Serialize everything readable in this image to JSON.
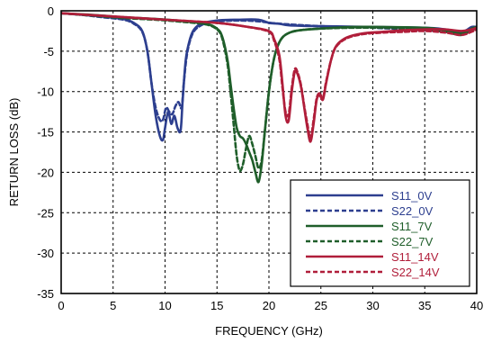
{
  "chart_data": {
    "type": "line",
    "title": "",
    "xlabel": "FREQUENCY (GHz)",
    "ylabel": "RETURN LOSS (dB)",
    "xlim": [
      0,
      40
    ],
    "ylim": [
      -35,
      0
    ],
    "xticks": [
      0,
      5,
      10,
      15,
      20,
      25,
      30,
      35,
      40
    ],
    "yticks": [
      0,
      -5,
      -10,
      -15,
      -20,
      -25,
      -30,
      -35
    ],
    "grid": true,
    "grid_style": "dashed",
    "legend_position": "bottom-right",
    "series": [
      {
        "name": "S11_0V",
        "color": "#2d3f8f",
        "dash": "solid",
        "x": [
          0,
          2,
          4,
          6,
          7,
          7.8,
          8.3,
          8.7,
          9.1,
          9.5,
          9.8,
          10,
          10.3,
          10.6,
          10.9,
          11.2,
          11.5,
          11.7,
          12.0,
          12.4,
          12.8,
          13.5,
          15,
          17,
          19,
          20,
          21,
          22,
          25,
          30,
          35,
          37,
          38.5,
          39,
          39.5,
          40
        ],
        "y": [
          -0.3,
          -0.5,
          -0.7,
          -1.0,
          -1.5,
          -2.5,
          -5,
          -9,
          -13,
          -15.5,
          -16,
          -14.5,
          -12.5,
          -14,
          -13,
          -14.5,
          -14.8,
          -11,
          -6,
          -3.5,
          -2.3,
          -1.6,
          -1.2,
          -1.1,
          -1.1,
          -1.5,
          -1.6,
          -1.8,
          -1.9,
          -2.0,
          -2.1,
          -2.3,
          -2.6,
          -2.4,
          -2.0,
          -2.0
        ]
      },
      {
        "name": "S22_0V",
        "color": "#2d3f8f",
        "dash": "dashed",
        "x": [
          0,
          2,
          4,
          6,
          7,
          7.8,
          8.3,
          8.7,
          9.1,
          9.5,
          9.8,
          10.1,
          10.4,
          10.7,
          11.0,
          11.3,
          11.6,
          11.8,
          12.1,
          12.5,
          13,
          14,
          15,
          17,
          19,
          21,
          25,
          30,
          35,
          37,
          38.5,
          39,
          39.5,
          40
        ],
        "y": [
          -0.3,
          -0.5,
          -0.8,
          -1.1,
          -1.6,
          -2.6,
          -5,
          -9,
          -12,
          -13.5,
          -13.5,
          -12.0,
          -12.5,
          -12.8,
          -11.8,
          -11.3,
          -12,
          -9,
          -5.5,
          -3.3,
          -2.2,
          -1.5,
          -1.3,
          -1.2,
          -1.3,
          -1.6,
          -1.9,
          -2.1,
          -2.4,
          -2.6,
          -2.9,
          -2.7,
          -2.3,
          -2.2
        ]
      },
      {
        "name": "S11_7V",
        "color": "#1f5e2a",
        "dash": "solid",
        "x": [
          0,
          3,
          6,
          9,
          12,
          14,
          15,
          15.5,
          16,
          16.3,
          16.6,
          16.9,
          17.2,
          17.5,
          17.8,
          18.1,
          18.4,
          18.7,
          19.0,
          19.3,
          19.6,
          20,
          20.4,
          20.8,
          21.3,
          22,
          23,
          25,
          28,
          31,
          35,
          37,
          38.5,
          39.5,
          40
        ],
        "y": [
          -0.3,
          -0.5,
          -0.8,
          -1.0,
          -1.3,
          -1.6,
          -2.2,
          -3.2,
          -6,
          -9,
          -12,
          -14.5,
          -15.5,
          -15.8,
          -16.5,
          -17.5,
          -18.5,
          -20,
          -21.2,
          -19,
          -15,
          -10,
          -6.5,
          -4.5,
          -3.3,
          -2.7,
          -2.4,
          -2.2,
          -2.0,
          -2.0,
          -2.1,
          -2.4,
          -2.8,
          -2.2,
          -2.0
        ]
      },
      {
        "name": "S22_7V",
        "color": "#1f5e2a",
        "dash": "dashed",
        "x": [
          0,
          3,
          6,
          9,
          12,
          14,
          15,
          15.5,
          16,
          16.3,
          16.6,
          16.9,
          17.2,
          17.5,
          17.8,
          18.1,
          18.4,
          18.7,
          19.0,
          19.3,
          19.6,
          20,
          20.4,
          20.8,
          21.3,
          22,
          23,
          25,
          28,
          31,
          35,
          37,
          38.5,
          39.5,
          40
        ],
        "y": [
          -0.3,
          -0.6,
          -0.9,
          -1.1,
          -1.4,
          -1.7,
          -2.3,
          -3.4,
          -6.5,
          -10,
          -14,
          -18,
          -19.8,
          -19,
          -17,
          -15.5,
          -16.5,
          -18,
          -19.5,
          -18.5,
          -15,
          -10,
          -6.5,
          -4.5,
          -3.3,
          -2.7,
          -2.4,
          -2.2,
          -2.1,
          -2.1,
          -2.3,
          -2.6,
          -3.0,
          -2.4,
          -2.2
        ]
      },
      {
        "name": "S11_14V",
        "color": "#b01e3a",
        "dash": "solid",
        "x": [
          0,
          5,
          10,
          15,
          18,
          20,
          20.5,
          21,
          21.3,
          21.6,
          21.9,
          22.2,
          22.5,
          22.8,
          23.1,
          23.4,
          23.7,
          24,
          24.3,
          24.6,
          24.9,
          25.2,
          25.5,
          26,
          26.5,
          27.5,
          29,
          31,
          33,
          35,
          37,
          38.5,
          39.5,
          40
        ],
        "y": [
          -0.3,
          -0.7,
          -1.1,
          -1.5,
          -2.0,
          -2.5,
          -3.5,
          -5.5,
          -9,
          -13,
          -13.6,
          -10,
          -7.5,
          -8,
          -9.5,
          -12,
          -14.5,
          -16.2,
          -14,
          -11,
          -10.5,
          -11,
          -9,
          -6,
          -4.3,
          -3.3,
          -2.8,
          -2.6,
          -2.4,
          -2.3,
          -2.3,
          -2.5,
          -2.3,
          -2.1
        ]
      },
      {
        "name": "S22_14V",
        "color": "#b01e3a",
        "dash": "dashed",
        "x": [
          0,
          5,
          10,
          15,
          18,
          20,
          20.5,
          21,
          21.3,
          21.6,
          21.9,
          22.2,
          22.5,
          22.8,
          23.1,
          23.4,
          23.7,
          24,
          24.3,
          24.6,
          24.9,
          25.2,
          25.5,
          26,
          26.5,
          27.5,
          29,
          31,
          33,
          35,
          37,
          38.5,
          39.5,
          40
        ],
        "y": [
          -0.3,
          -0.7,
          -1.1,
          -1.5,
          -2.0,
          -2.6,
          -3.7,
          -6,
          -9.5,
          -12.5,
          -12.8,
          -9.5,
          -7.2,
          -7.8,
          -9.3,
          -11.8,
          -14,
          -15.8,
          -13.5,
          -10.8,
          -10.2,
          -10.8,
          -8.8,
          -6,
          -4.4,
          -3.4,
          -2.9,
          -2.7,
          -2.6,
          -2.5,
          -2.7,
          -3.0,
          -2.6,
          -2.3
        ]
      }
    ]
  }
}
